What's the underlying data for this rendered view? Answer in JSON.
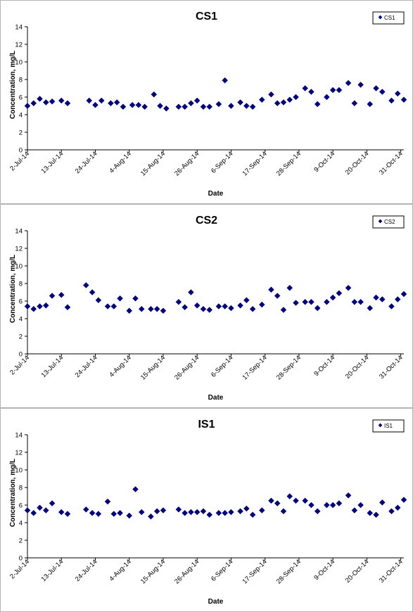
{
  "chart_data": [
    {
      "type": "scatter",
      "title": "CS1",
      "xlabel": "Date",
      "ylabel": "Concentration, mg/L",
      "ylim": [
        0,
        14
      ],
      "yticks": [
        "0",
        "2",
        "4",
        "6",
        "8",
        "10",
        "12",
        "14"
      ],
      "xlim": [
        "2014-07-02",
        "2014-10-31"
      ],
      "xticks": [
        "2-Jul-14",
        "13-Jul-14",
        "24-Jul-14",
        "4-Aug-14",
        "15-Aug-14",
        "26-Aug-14",
        "6-Sep-14",
        "17-Sep-14",
        "28-Sep-14",
        "9-Oct-14",
        "20-Oct-14",
        "31-Oct-14"
      ],
      "grid": false,
      "legend": "top-right",
      "marker_color": "#000080",
      "series": [
        {
          "name": "CS1",
          "points": [
            {
              "x": "2014-07-02",
              "y": 5.0
            },
            {
              "x": "2014-07-04",
              "y": 5.3
            },
            {
              "x": "2014-07-06",
              "y": 5.8
            },
            {
              "x": "2014-07-08",
              "y": 5.4
            },
            {
              "x": "2014-07-10",
              "y": 5.5
            },
            {
              "x": "2014-07-13",
              "y": 5.6
            },
            {
              "x": "2014-07-15",
              "y": 5.3
            },
            {
              "x": "2014-07-22",
              "y": 5.6
            },
            {
              "x": "2014-07-24",
              "y": 5.1
            },
            {
              "x": "2014-07-26",
              "y": 5.6
            },
            {
              "x": "2014-07-29",
              "y": 5.3
            },
            {
              "x": "2014-07-31",
              "y": 5.4
            },
            {
              "x": "2014-08-02",
              "y": 4.9
            },
            {
              "x": "2014-08-05",
              "y": 5.1
            },
            {
              "x": "2014-08-07",
              "y": 5.1
            },
            {
              "x": "2014-08-09",
              "y": 4.9
            },
            {
              "x": "2014-08-12",
              "y": 6.3
            },
            {
              "x": "2014-08-14",
              "y": 5.0
            },
            {
              "x": "2014-08-16",
              "y": 4.7
            },
            {
              "x": "2014-08-20",
              "y": 4.9
            },
            {
              "x": "2014-08-22",
              "y": 4.9
            },
            {
              "x": "2014-08-24",
              "y": 5.3
            },
            {
              "x": "2014-08-26",
              "y": 5.6
            },
            {
              "x": "2014-08-28",
              "y": 4.9
            },
            {
              "x": "2014-08-30",
              "y": 4.9
            },
            {
              "x": "2014-09-02",
              "y": 5.2
            },
            {
              "x": "2014-09-04",
              "y": 7.9
            },
            {
              "x": "2014-09-06",
              "y": 5.0
            },
            {
              "x": "2014-09-09",
              "y": 5.4
            },
            {
              "x": "2014-09-11",
              "y": 5.0
            },
            {
              "x": "2014-09-13",
              "y": 4.9
            },
            {
              "x": "2014-09-16",
              "y": 5.7
            },
            {
              "x": "2014-09-19",
              "y": 6.3
            },
            {
              "x": "2014-09-21",
              "y": 5.3
            },
            {
              "x": "2014-09-23",
              "y": 5.4
            },
            {
              "x": "2014-09-25",
              "y": 5.7
            },
            {
              "x": "2014-09-27",
              "y": 6.0
            },
            {
              "x": "2014-09-30",
              "y": 7.0
            },
            {
              "x": "2014-10-02",
              "y": 6.6
            },
            {
              "x": "2014-10-04",
              "y": 5.2
            },
            {
              "x": "2014-10-07",
              "y": 6.0
            },
            {
              "x": "2014-10-09",
              "y": 6.8
            },
            {
              "x": "2014-10-11",
              "y": 6.8
            },
            {
              "x": "2014-10-14",
              "y": 7.6
            },
            {
              "x": "2014-10-16",
              "y": 5.3
            },
            {
              "x": "2014-10-18",
              "y": 7.4
            },
            {
              "x": "2014-10-21",
              "y": 5.2
            },
            {
              "x": "2014-10-23",
              "y": 7.0
            },
            {
              "x": "2014-10-25",
              "y": 6.6
            },
            {
              "x": "2014-10-28",
              "y": 5.6
            },
            {
              "x": "2014-10-30",
              "y": 6.4
            },
            {
              "x": "2014-11-01",
              "y": 5.7
            }
          ]
        }
      ]
    },
    {
      "type": "scatter",
      "title": "CS2",
      "xlabel": "Date",
      "ylabel": "Concentration, mg/L",
      "ylim": [
        0,
        14
      ],
      "yticks": [
        "0",
        "2",
        "4",
        "6",
        "8",
        "10",
        "12",
        "14"
      ],
      "xlim": [
        "2014-07-02",
        "2014-10-31"
      ],
      "xticks": [
        "2-Jul-14",
        "13-Jul-14",
        "24-Jul-14",
        "4-Aug-14",
        "15-Aug-14",
        "26-Aug-14",
        "6-Sep-14",
        "17-Sep-14",
        "28-Sep-14",
        "9-Oct-14",
        "20-Oct-14",
        "31-Oct-14"
      ],
      "grid": false,
      "legend": "top-right",
      "marker_color": "#000080",
      "series": [
        {
          "name": "CS2",
          "points": [
            {
              "x": "2014-07-02",
              "y": 5.4
            },
            {
              "x": "2014-07-04",
              "y": 5.1
            },
            {
              "x": "2014-07-06",
              "y": 5.4
            },
            {
              "x": "2014-07-08",
              "y": 5.5
            },
            {
              "x": "2014-07-10",
              "y": 6.6
            },
            {
              "x": "2014-07-13",
              "y": 6.7
            },
            {
              "x": "2014-07-15",
              "y": 5.3
            },
            {
              "x": "2014-07-21",
              "y": 7.8
            },
            {
              "x": "2014-07-23",
              "y": 7.0
            },
            {
              "x": "2014-07-25",
              "y": 6.1
            },
            {
              "x": "2014-07-28",
              "y": 5.4
            },
            {
              "x": "2014-07-30",
              "y": 5.4
            },
            {
              "x": "2014-08-01",
              "y": 6.3
            },
            {
              "x": "2014-08-04",
              "y": 4.9
            },
            {
              "x": "2014-08-06",
              "y": 6.3
            },
            {
              "x": "2014-08-08",
              "y": 5.1
            },
            {
              "x": "2014-08-11",
              "y": 5.1
            },
            {
              "x": "2014-08-13",
              "y": 5.1
            },
            {
              "x": "2014-08-15",
              "y": 4.9
            },
            {
              "x": "2014-08-20",
              "y": 5.9
            },
            {
              "x": "2014-08-22",
              "y": 5.3
            },
            {
              "x": "2014-08-24",
              "y": 7.0
            },
            {
              "x": "2014-08-26",
              "y": 5.5
            },
            {
              "x": "2014-08-28",
              "y": 5.1
            },
            {
              "x": "2014-08-30",
              "y": 5.0
            },
            {
              "x": "2014-09-02",
              "y": 5.4
            },
            {
              "x": "2014-09-04",
              "y": 5.4
            },
            {
              "x": "2014-09-06",
              "y": 5.2
            },
            {
              "x": "2014-09-09",
              "y": 5.5
            },
            {
              "x": "2014-09-11",
              "y": 6.1
            },
            {
              "x": "2014-09-13",
              "y": 5.1
            },
            {
              "x": "2014-09-16",
              "y": 5.6
            },
            {
              "x": "2014-09-19",
              "y": 7.3
            },
            {
              "x": "2014-09-21",
              "y": 6.6
            },
            {
              "x": "2014-09-23",
              "y": 5.0
            },
            {
              "x": "2014-09-25",
              "y": 7.5
            },
            {
              "x": "2014-09-27",
              "y": 5.8
            },
            {
              "x": "2014-09-30",
              "y": 5.9
            },
            {
              "x": "2014-10-02",
              "y": 5.9
            },
            {
              "x": "2014-10-04",
              "y": 5.2
            },
            {
              "x": "2014-10-07",
              "y": 5.9
            },
            {
              "x": "2014-10-09",
              "y": 6.4
            },
            {
              "x": "2014-10-11",
              "y": 6.9
            },
            {
              "x": "2014-10-14",
              "y": 7.5
            },
            {
              "x": "2014-10-16",
              "y": 5.9
            },
            {
              "x": "2014-10-18",
              "y": 5.9
            },
            {
              "x": "2014-10-21",
              "y": 5.2
            },
            {
              "x": "2014-10-23",
              "y": 6.4
            },
            {
              "x": "2014-10-25",
              "y": 6.2
            },
            {
              "x": "2014-10-28",
              "y": 5.4
            },
            {
              "x": "2014-10-30",
              "y": 6.2
            },
            {
              "x": "2014-11-01",
              "y": 6.8
            }
          ]
        }
      ]
    },
    {
      "type": "scatter",
      "title": "IS1",
      "xlabel": "Date",
      "ylabel": "Concentration, mg/L",
      "ylim": [
        0,
        14
      ],
      "yticks": [
        "0",
        "2",
        "4",
        "6",
        "8",
        "10",
        "12",
        "14"
      ],
      "xlim": [
        "2014-07-02",
        "2014-10-31"
      ],
      "xticks": [
        "2-Jul-14",
        "13-Jul-14",
        "24-Jul-14",
        "4-Aug-14",
        "15-Aug-14",
        "26-Aug-14",
        "6-Sep-14",
        "17-Sep-14",
        "28-Sep-14",
        "9-Oct-14",
        "20-Oct-14",
        "31-Oct-14"
      ],
      "grid": false,
      "legend": "top-right",
      "marker_color": "#000080",
      "series": [
        {
          "name": "IS1",
          "points": [
            {
              "x": "2014-07-02",
              "y": 5.4
            },
            {
              "x": "2014-07-04",
              "y": 5.1
            },
            {
              "x": "2014-07-06",
              "y": 5.7
            },
            {
              "x": "2014-07-08",
              "y": 5.4
            },
            {
              "x": "2014-07-10",
              "y": 6.2
            },
            {
              "x": "2014-07-13",
              "y": 5.2
            },
            {
              "x": "2014-07-15",
              "y": 5.0
            },
            {
              "x": "2014-07-21",
              "y": 5.5
            },
            {
              "x": "2014-07-23",
              "y": 5.1
            },
            {
              "x": "2014-07-25",
              "y": 5.0
            },
            {
              "x": "2014-07-28",
              "y": 6.4
            },
            {
              "x": "2014-07-30",
              "y": 5.0
            },
            {
              "x": "2014-08-01",
              "y": 5.1
            },
            {
              "x": "2014-08-04",
              "y": 4.8
            },
            {
              "x": "2014-08-06",
              "y": 7.8
            },
            {
              "x": "2014-08-08",
              "y": 5.2
            },
            {
              "x": "2014-08-11",
              "y": 4.7
            },
            {
              "x": "2014-08-13",
              "y": 5.3
            },
            {
              "x": "2014-08-15",
              "y": 5.4
            },
            {
              "x": "2014-08-20",
              "y": 5.5
            },
            {
              "x": "2014-08-22",
              "y": 5.1
            },
            {
              "x": "2014-08-24",
              "y": 5.2
            },
            {
              "x": "2014-08-26",
              "y": 5.2
            },
            {
              "x": "2014-08-28",
              "y": 5.3
            },
            {
              "x": "2014-08-30",
              "y": 4.9
            },
            {
              "x": "2014-09-02",
              "y": 5.1
            },
            {
              "x": "2014-09-04",
              "y": 5.1
            },
            {
              "x": "2014-09-06",
              "y": 5.2
            },
            {
              "x": "2014-09-09",
              "y": 5.3
            },
            {
              "x": "2014-09-11",
              "y": 5.6
            },
            {
              "x": "2014-09-13",
              "y": 4.9
            },
            {
              "x": "2014-09-16",
              "y": 5.4
            },
            {
              "x": "2014-09-19",
              "y": 6.5
            },
            {
              "x": "2014-09-21",
              "y": 6.2
            },
            {
              "x": "2014-09-23",
              "y": 5.3
            },
            {
              "x": "2014-09-25",
              "y": 7.0
            },
            {
              "x": "2014-09-27",
              "y": 6.5
            },
            {
              "x": "2014-09-30",
              "y": 6.5
            },
            {
              "x": "2014-10-02",
              "y": 6.0
            },
            {
              "x": "2014-10-04",
              "y": 5.3
            },
            {
              "x": "2014-10-07",
              "y": 6.0
            },
            {
              "x": "2014-10-09",
              "y": 6.0
            },
            {
              "x": "2014-10-11",
              "y": 6.2
            },
            {
              "x": "2014-10-14",
              "y": 7.1
            },
            {
              "x": "2014-10-16",
              "y": 5.4
            },
            {
              "x": "2014-10-18",
              "y": 6.0
            },
            {
              "x": "2014-10-21",
              "y": 5.1
            },
            {
              "x": "2014-10-23",
              "y": 4.9
            },
            {
              "x": "2014-10-25",
              "y": 6.3
            },
            {
              "x": "2014-10-28",
              "y": 5.3
            },
            {
              "x": "2014-10-30",
              "y": 5.7
            },
            {
              "x": "2014-11-01",
              "y": 6.6
            }
          ]
        }
      ]
    }
  ]
}
